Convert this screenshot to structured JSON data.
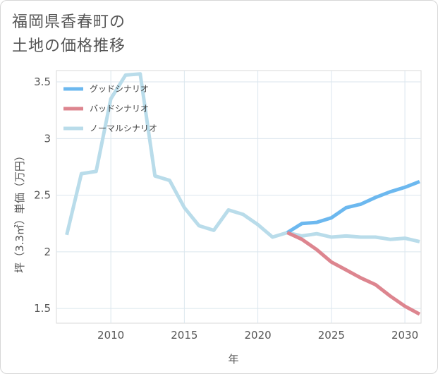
{
  "chart_data": {
    "type": "line",
    "title": "福岡県香春町の\n土地の価格推移",
    "xlabel": "年",
    "ylabel": "坪（3.3㎡）単価（万円）",
    "xlim": [
      2006.3,
      2031.1
    ],
    "ylim": [
      1.37,
      3.6
    ],
    "xticks": [
      2010,
      2015,
      2020,
      2025,
      2030
    ],
    "xtick_labels": [
      "2010",
      "2015",
      "2020",
      "2025",
      "2030"
    ],
    "yticks": [
      1.5,
      2,
      2.5,
      3,
      3.5
    ],
    "ytick_labels": [
      "1.5",
      "2",
      "2.5",
      "3",
      "3.5"
    ],
    "grid": true,
    "legend_position": "top-left",
    "series": [
      {
        "name": "グッドシナリオ",
        "color": "#6cb8ef",
        "x": [
          2022,
          2023,
          2024,
          2025,
          2026,
          2027,
          2028,
          2029,
          2030,
          2031
        ],
        "y": [
          2.17,
          2.25,
          2.26,
          2.3,
          2.39,
          2.42,
          2.48,
          2.53,
          2.57,
          2.62
        ]
      },
      {
        "name": "バッドシナリオ",
        "color": "#dd858f",
        "x": [
          2022,
          2023,
          2024,
          2025,
          2026,
          2027,
          2028,
          2029,
          2030,
          2031
        ],
        "y": [
          2.17,
          2.11,
          2.02,
          1.91,
          1.84,
          1.77,
          1.71,
          1.61,
          1.52,
          1.45
        ]
      },
      {
        "name": "ノーマルシナリオ",
        "color": "#b9dcea",
        "x": [
          2007,
          2008,
          2009,
          2010,
          2011,
          2012,
          2013,
          2014,
          2015,
          2016,
          2017,
          2018,
          2019,
          2020,
          2021,
          2022,
          2023,
          2024,
          2025,
          2026,
          2027,
          2028,
          2029,
          2030,
          2031
        ],
        "y": [
          2.15,
          2.69,
          2.71,
          3.35,
          3.56,
          3.57,
          2.67,
          2.63,
          2.39,
          2.23,
          2.19,
          2.37,
          2.33,
          2.24,
          2.13,
          2.17,
          2.14,
          2.16,
          2.13,
          2.14,
          2.13,
          2.13,
          2.11,
          2.12,
          2.09
        ]
      }
    ]
  }
}
